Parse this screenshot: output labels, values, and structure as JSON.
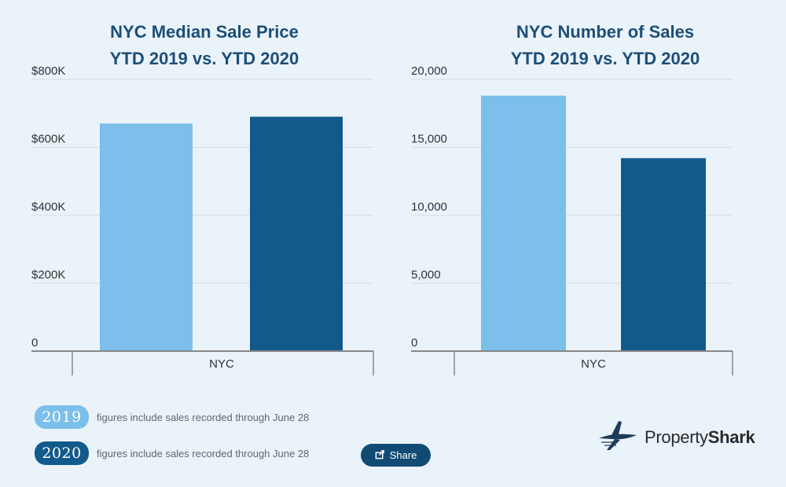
{
  "colors": {
    "y2019": "#7bbfea",
    "y2020": "#125a8c",
    "grid": "#d5dde3",
    "axis": "#888888"
  },
  "chart_data": [
    {
      "type": "bar",
      "title": [
        "NYC Median Sale Price",
        "YTD 2019 vs. YTD 2020"
      ],
      "categories": [
        "NYC"
      ],
      "series": [
        {
          "year": "2019",
          "values": [
            670000
          ]
        },
        {
          "year": "2020",
          "values": [
            690000
          ]
        }
      ],
      "yticks": [
        0,
        200000,
        400000,
        600000,
        800000
      ],
      "ytick_labels": [
        "0",
        "$200K",
        "$400K",
        "$600K",
        "$800K"
      ],
      "ylim": [
        0,
        800000
      ],
      "grid": true
    },
    {
      "type": "bar",
      "title": [
        "NYC Number of Sales",
        "YTD 2019 vs. YTD 2020"
      ],
      "categories": [
        "NYC"
      ],
      "series": [
        {
          "year": "2019",
          "values": [
            18800
          ]
        },
        {
          "year": "2020",
          "values": [
            14200
          ]
        }
      ],
      "yticks": [
        0,
        5000,
        10000,
        15000,
        20000
      ],
      "ytick_labels": [
        "0",
        "5,000",
        "10,000",
        "15,000",
        "20,000"
      ],
      "ylim": [
        0,
        20000
      ],
      "grid": true
    }
  ],
  "legend": [
    {
      "year": "2019",
      "note": "figures include sales recorded through June 28"
    },
    {
      "year": "2020",
      "note": "figures include sales recorded through June 28"
    }
  ],
  "share_label": "Share",
  "logo": {
    "prefix": "Property",
    "bold": "Shark"
  },
  "icons": {
    "share": "share-icon",
    "logo": "shark-logo-icon"
  }
}
